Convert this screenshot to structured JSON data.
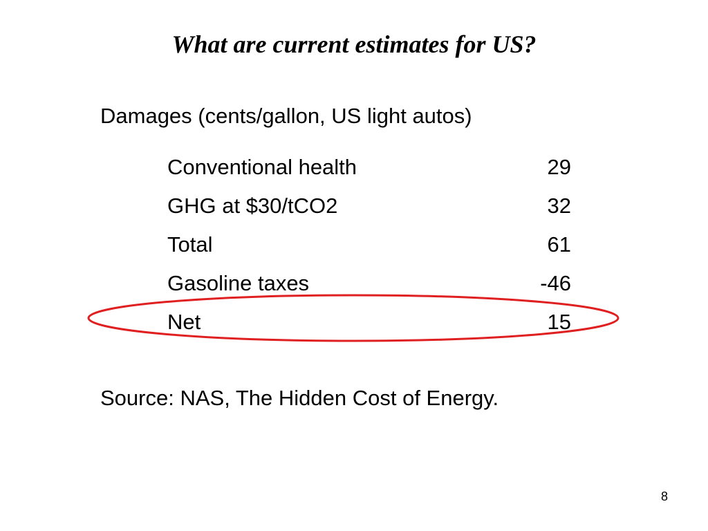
{
  "slide": {
    "title": "What are current estimates for US?",
    "subtitle": "Damages (cents/gallon, US light autos)",
    "rows": [
      {
        "label": "Conventional health",
        "value": "29"
      },
      {
        "label": "GHG at $30/tCO2",
        "value": "32"
      },
      {
        "label": "Total",
        "value": "61"
      },
      {
        "label": "Gasoline taxes",
        "value": "-46"
      },
      {
        "label": "Net",
        "value": "15"
      }
    ],
    "source": "Source: NAS, The Hidden Cost of Energy.",
    "page_number": "8",
    "highlight_color": "#e02020"
  }
}
